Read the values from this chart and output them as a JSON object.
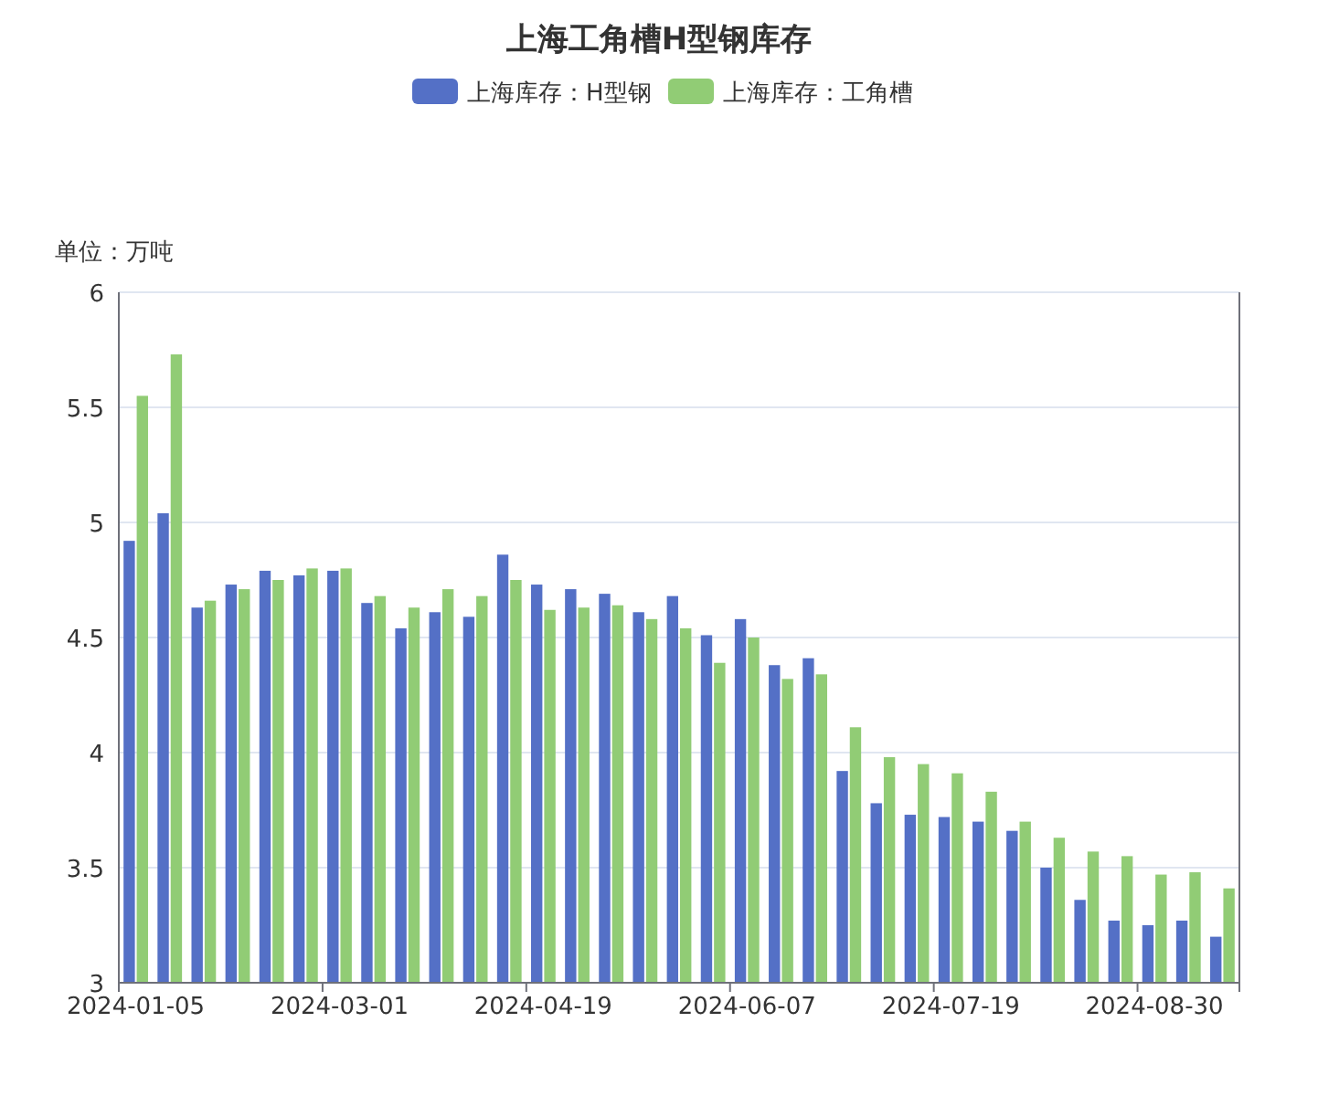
{
  "chart_data": {
    "type": "bar",
    "title": "上海工角槽H型钢库存",
    "ylabel": "单位：万吨",
    "categories": [
      "2024-01-05",
      null,
      null,
      null,
      null,
      null,
      "2024-03-01",
      null,
      null,
      null,
      null,
      null,
      "2024-04-19",
      null,
      null,
      null,
      null,
      null,
      "2024-06-07",
      null,
      null,
      null,
      null,
      null,
      "2024-07-19",
      null,
      null,
      null,
      null,
      null,
      "2024-08-30",
      null,
      null
    ],
    "series": [
      {
        "name": "上海库存：H型钢",
        "color": "#5470c6",
        "values": [
          4.92,
          5.04,
          4.63,
          4.73,
          4.79,
          4.77,
          4.79,
          4.65,
          4.54,
          4.61,
          4.59,
          4.86,
          4.73,
          4.71,
          4.69,
          4.61,
          4.68,
          4.51,
          4.58,
          4.38,
          4.41,
          3.92,
          3.78,
          3.73,
          3.72,
          3.7,
          3.66,
          3.5,
          3.36,
          3.27,
          3.25,
          3.27,
          3.2
        ]
      },
      {
        "name": "上海库存：工角槽",
        "color": "#91cc75",
        "values": [
          5.55,
          5.73,
          4.66,
          4.71,
          4.75,
          4.8,
          4.8,
          4.68,
          4.63,
          4.71,
          4.68,
          4.75,
          4.62,
          4.63,
          4.64,
          4.58,
          4.54,
          4.39,
          4.5,
          4.32,
          4.34,
          4.11,
          3.98,
          3.95,
          3.91,
          3.83,
          3.7,
          3.63,
          3.57,
          3.55,
          3.47,
          3.48,
          3.41
        ]
      }
    ],
    "ylim": [
      3,
      6
    ],
    "yticks": [
      3,
      3.5,
      4,
      4.5,
      5,
      5.5,
      6
    ],
    "grid": "y",
    "legend": "top"
  }
}
